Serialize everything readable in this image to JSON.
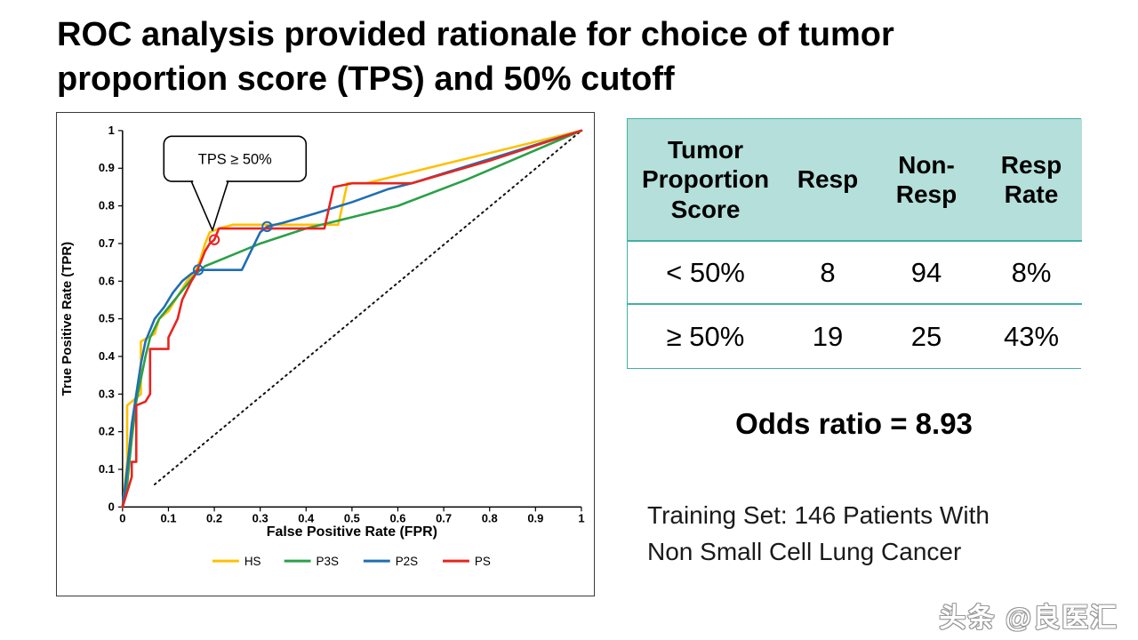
{
  "slide": {
    "title_line1": "ROC analysis provided rationale for choice of tumor",
    "title_line2": "proportion score (TPS) and 50% cutoff"
  },
  "chart_data": {
    "type": "line",
    "xlabel": "False Positive Rate (FPR)",
    "ylabel": "True Positive Rate (TPR)",
    "xlim": [
      0,
      1
    ],
    "ylim": [
      0,
      1
    ],
    "grid": false,
    "legend_position": "bottom",
    "xticks": [
      "0",
      "0.1",
      "0.2",
      "0.3",
      "0.4",
      "0.5",
      "0.6",
      "0.7",
      "0.8",
      "0.9",
      "1"
    ],
    "yticks": [
      "0",
      "0.1",
      "0.2",
      "0.3",
      "0.4",
      "0.5",
      "0.6",
      "0.7",
      "0.8",
      "0.9",
      "1"
    ],
    "annotation": {
      "text": "TPS ≥ 50%",
      "box": [
        0.09,
        0.865,
        0.4,
        0.985
      ],
      "tail_base": [
        0.15,
        0.23
      ],
      "tail_tip": [
        0.196,
        0.735
      ]
    },
    "diagonal": {
      "from": [
        0.07,
        0.06
      ],
      "to": [
        1,
        1
      ],
      "style": "dotted",
      "color": "#111111"
    },
    "series": [
      {
        "name": "HS",
        "color": "#FFC000",
        "points": [
          [
            0,
            0
          ],
          [
            0.01,
            0.12
          ],
          [
            0.01,
            0.27
          ],
          [
            0.04,
            0.3
          ],
          [
            0.04,
            0.44
          ],
          [
            0.07,
            0.46
          ],
          [
            0.08,
            0.5
          ],
          [
            0.1,
            0.52
          ],
          [
            0.12,
            0.56
          ],
          [
            0.14,
            0.6
          ],
          [
            0.16,
            0.63
          ],
          [
            0.17,
            0.66
          ],
          [
            0.18,
            0.7
          ],
          [
            0.19,
            0.73
          ],
          [
            0.21,
            0.74
          ],
          [
            0.24,
            0.75
          ],
          [
            0.47,
            0.75
          ],
          [
            0.49,
            0.86
          ],
          [
            0.53,
            0.86
          ],
          [
            1,
            1
          ]
        ]
      },
      {
        "name": "P3S",
        "color": "#2CA048",
        "points": [
          [
            0,
            0
          ],
          [
            0.01,
            0.06
          ],
          [
            0.02,
            0.18
          ],
          [
            0.03,
            0.28
          ],
          [
            0.04,
            0.34
          ],
          [
            0.05,
            0.4
          ],
          [
            0.06,
            0.45
          ],
          [
            0.08,
            0.5
          ],
          [
            0.1,
            0.53
          ],
          [
            0.12,
            0.56
          ],
          [
            0.14,
            0.59
          ],
          [
            0.16,
            0.62
          ],
          [
            0.18,
            0.64
          ],
          [
            0.22,
            0.66
          ],
          [
            0.3,
            0.7
          ],
          [
            0.4,
            0.74
          ],
          [
            0.5,
            0.77
          ],
          [
            0.6,
            0.8
          ],
          [
            0.75,
            0.87
          ],
          [
            1,
            1
          ]
        ]
      },
      {
        "name": "P2S",
        "color": "#1F6EB4",
        "points": [
          [
            0,
            0
          ],
          [
            0.01,
            0.1
          ],
          [
            0.02,
            0.22
          ],
          [
            0.03,
            0.3
          ],
          [
            0.04,
            0.38
          ],
          [
            0.05,
            0.44
          ],
          [
            0.07,
            0.5
          ],
          [
            0.09,
            0.53
          ],
          [
            0.11,
            0.57
          ],
          [
            0.13,
            0.6
          ],
          [
            0.15,
            0.62
          ],
          [
            0.165,
            0.63
          ],
          [
            0.26,
            0.63
          ],
          [
            0.28,
            0.68
          ],
          [
            0.3,
            0.73
          ],
          [
            0.315,
            0.745
          ],
          [
            0.35,
            0.755
          ],
          [
            0.42,
            0.78
          ],
          [
            0.5,
            0.81
          ],
          [
            0.58,
            0.845
          ],
          [
            0.63,
            0.86
          ],
          [
            1,
            1
          ]
        ]
      },
      {
        "name": "PS",
        "color": "#E8241F",
        "points": [
          [
            0,
            0
          ],
          [
            0.02,
            0.08
          ],
          [
            0.02,
            0.12
          ],
          [
            0.03,
            0.12
          ],
          [
            0.03,
            0.27
          ],
          [
            0.05,
            0.28
          ],
          [
            0.06,
            0.3
          ],
          [
            0.06,
            0.42
          ],
          [
            0.1,
            0.42
          ],
          [
            0.1,
            0.45
          ],
          [
            0.12,
            0.5
          ],
          [
            0.13,
            0.55
          ],
          [
            0.15,
            0.6
          ],
          [
            0.16,
            0.62
          ],
          [
            0.17,
            0.65
          ],
          [
            0.18,
            0.68
          ],
          [
            0.19,
            0.7
          ],
          [
            0.2,
            0.71
          ],
          [
            0.21,
            0.74
          ],
          [
            0.25,
            0.74
          ],
          [
            0.44,
            0.74
          ],
          [
            0.46,
            0.85
          ],
          [
            0.5,
            0.86
          ],
          [
            0.63,
            0.86
          ],
          [
            0.8,
            0.92
          ],
          [
            1,
            1
          ]
        ]
      }
    ],
    "markers": [
      {
        "x": 0.2,
        "y": 0.71,
        "color": "#E8241F"
      },
      {
        "x": 0.165,
        "y": 0.63,
        "color": "#1F6EB4"
      },
      {
        "x": 0.315,
        "y": 0.745,
        "color": "#1F6EB4"
      }
    ]
  },
  "table": {
    "header": [
      "Tumor Proportion Score",
      "Resp",
      "Non-Resp",
      "Resp Rate"
    ],
    "rows": [
      [
        "< 50%",
        "8",
        "94",
        "8%"
      ],
      [
        "≥ 50%",
        "19",
        "25",
        "43%"
      ]
    ]
  },
  "odds_ratio": "Odds ratio = 8.93",
  "training": {
    "line1": "Training Set: 146 Patients With",
    "line2": "Non Small Cell Lung Cancer"
  },
  "watermark": "头条 @良医汇",
  "colors": {
    "table_header_bg": "#B5DFDA",
    "table_border": "#41B0A5"
  }
}
